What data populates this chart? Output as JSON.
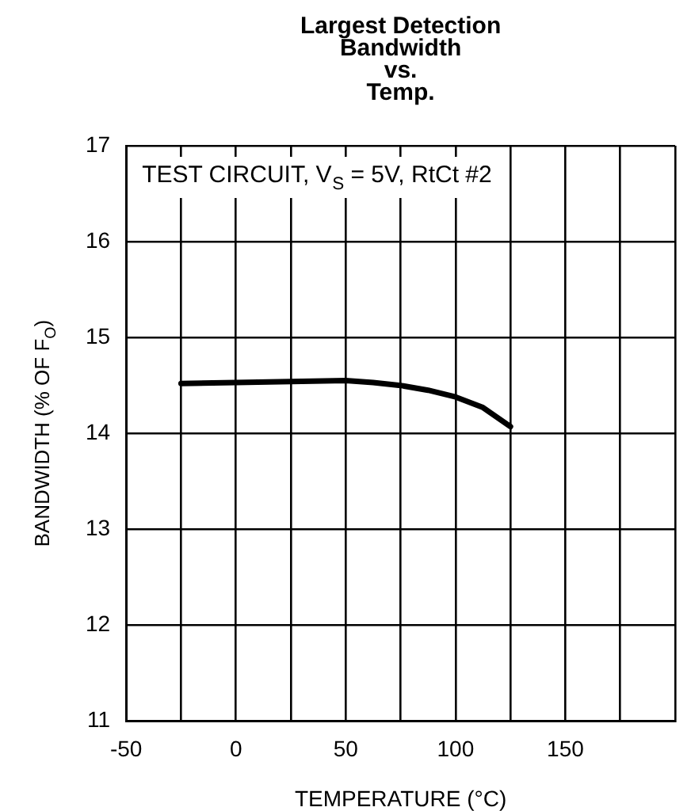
{
  "chart_data": {
    "type": "line",
    "title": "Largest Detection\nBandwidth\nvs.\nTemp.",
    "xlabel": "TEMPERATURE (°C)",
    "ylabel": "BANDWIDTH (% OF F$_{O}$)",
    "annotations": [
      "TEST CIRCUIT, V$_{S}$ = 5V, RtCt #2"
    ],
    "x": [
      -25,
      0,
      25,
      50,
      62.5,
      75,
      87.5,
      100,
      112.5,
      125
    ],
    "series": [
      {
        "color": "#000000",
        "values": [
          14.52,
          14.53,
          14.54,
          14.55,
          14.53,
          14.5,
          14.45,
          14.38,
          14.27,
          14.07
        ]
      }
    ],
    "xlim": [
      -50,
      200
    ],
    "xticks": [
      -50,
      {
        "value": -25,
        "label": null
      },
      0,
      {
        "value": 25,
        "label": null
      },
      50,
      {
        "value": 75,
        "label": null
      },
      100,
      {
        "value": 125,
        "label": null
      },
      150,
      {
        "value": 175,
        "label": null
      },
      {
        "value": 200,
        "label": null
      }
    ],
    "ylim": [
      11,
      17
    ],
    "yticks": [
      11,
      12,
      13,
      14,
      15,
      16,
      17
    ],
    "grid": true,
    "legend": false,
    "marker": "none",
    "line_style": "solid"
  }
}
